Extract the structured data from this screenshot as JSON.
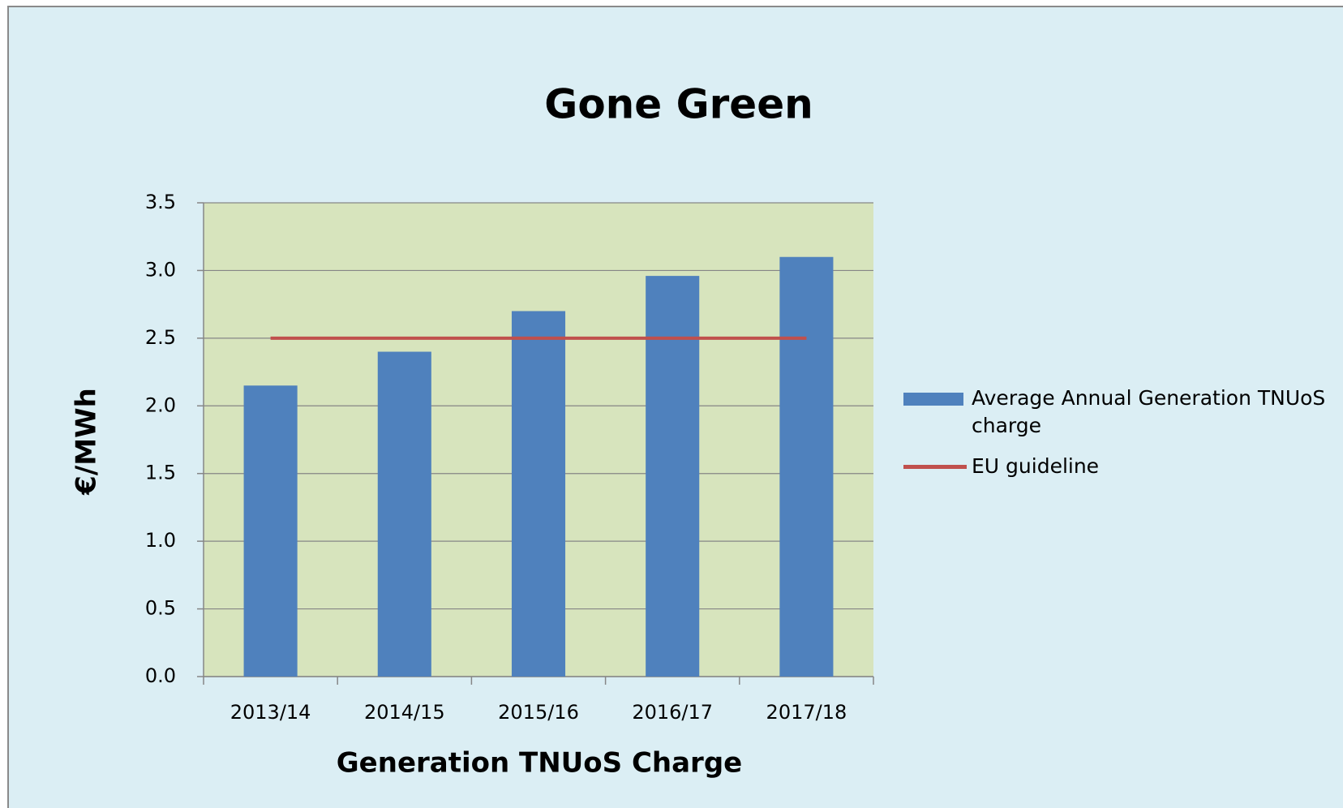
{
  "chart_data": {
    "type": "bar",
    "title": "Gone Green",
    "x_label": "Generation TNUoS Charge",
    "y_label": "€/MWh",
    "categories": [
      "2013/14",
      "2014/15",
      "2015/16",
      "2016/17",
      "2017/18"
    ],
    "series": [
      {
        "name": "Average Annual Generation TNUoS charge",
        "type": "bar",
        "color": "#4f81bd",
        "values": [
          2.15,
          2.4,
          2.7,
          2.96,
          3.1
        ]
      },
      {
        "name": "EU guideline",
        "type": "line",
        "color": "#c0504d",
        "values": [
          2.5,
          2.5,
          2.5,
          2.5,
          2.5
        ]
      }
    ],
    "ylim": [
      0,
      3.5
    ],
    "yticks": [
      {
        "value": 0,
        "label": "0.0"
      },
      0.5,
      {
        "value": 1,
        "label": "1.0"
      },
      1.5,
      {
        "value": 2,
        "label": "2.0"
      },
      2.5,
      {
        "value": 3,
        "label": "3.0"
      },
      3.5
    ],
    "grid": true,
    "legend": "right"
  }
}
